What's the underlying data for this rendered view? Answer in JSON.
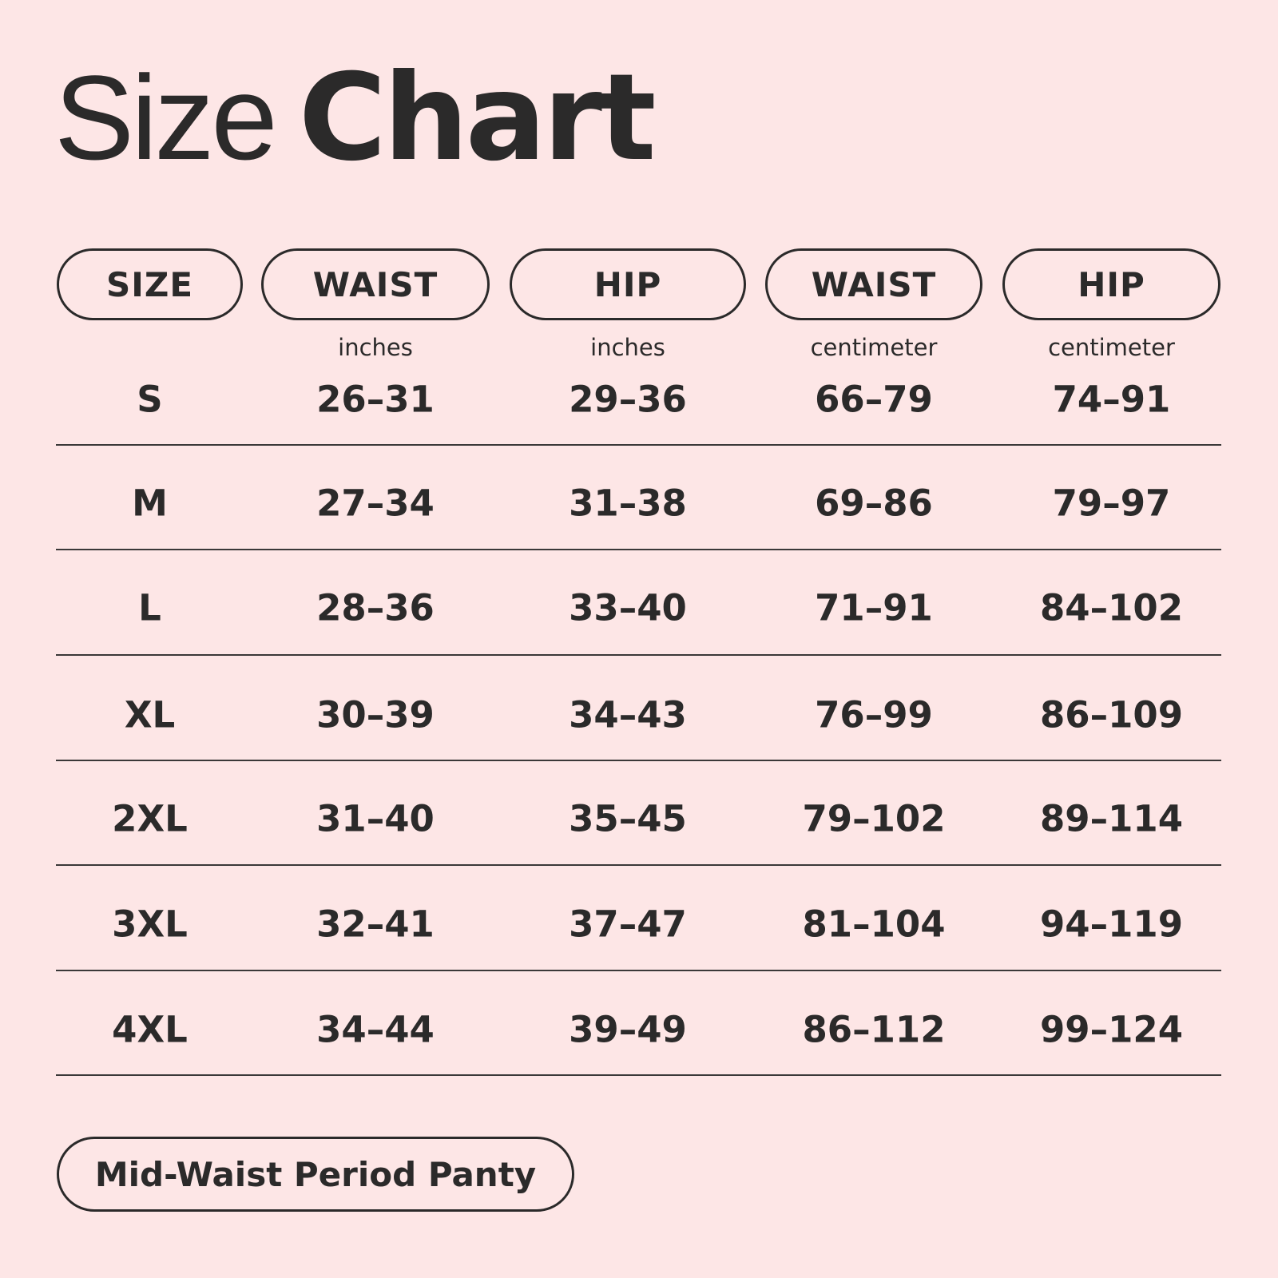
{
  "colors": {
    "background": "#fde6e6",
    "text": "#2b2a2a"
  },
  "title": {
    "light": "Size",
    "bold": "Chart"
  },
  "headers": [
    {
      "label": "SIZE",
      "unit": ""
    },
    {
      "label": "WAIST",
      "unit": "inches"
    },
    {
      "label": "HIP",
      "unit": "inches"
    },
    {
      "label": "WAIST",
      "unit": "centimeter"
    },
    {
      "label": "HIP",
      "unit": "centimeter"
    }
  ],
  "rows": [
    [
      "S",
      "26–31",
      "29–36",
      "66–79",
      "74–91"
    ],
    [
      "M",
      "27–34",
      "31–38",
      "69–86",
      "79–97"
    ],
    [
      "L",
      "28–36",
      "33–40",
      "71–91",
      "84–102"
    ],
    [
      "XL",
      "30–39",
      "34–43",
      "76–99",
      "86–109"
    ],
    [
      "2XL",
      "31–40",
      "35–45",
      "79–102",
      "89–114"
    ],
    [
      "3XL",
      "32–41",
      "37–47",
      "81–104",
      "94–119"
    ],
    [
      "4XL",
      "34–44",
      "39–49",
      "86–112",
      "99–124"
    ]
  ],
  "footer": {
    "product": "Mid-Waist Period Panty"
  }
}
